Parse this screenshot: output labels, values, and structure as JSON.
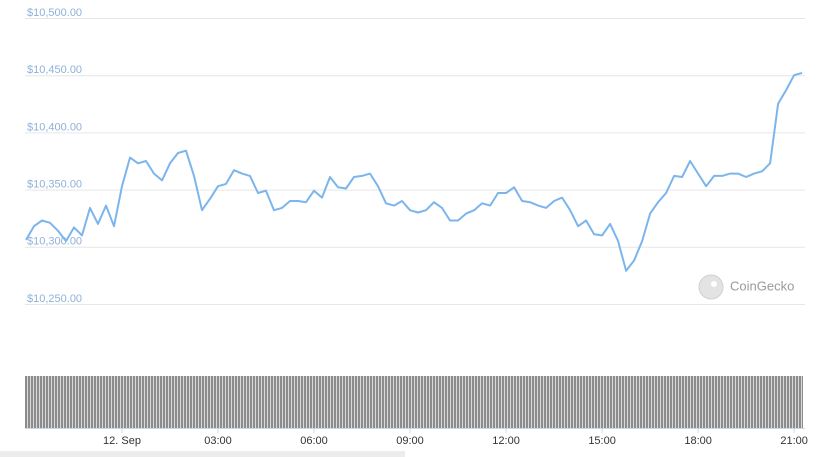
{
  "chart_data": {
    "type": "line",
    "watermark": "CoinGecko",
    "color": "#7cb5ec",
    "grid": true,
    "xlim": [
      -3.03,
      21.34
    ],
    "ylim": [
      10250,
      10500
    ],
    "xticks": [
      {
        "value": 0,
        "label": "12. Sep"
      },
      {
        "value": 3,
        "label": "03:00"
      },
      {
        "value": 6,
        "label": "06:00"
      },
      {
        "value": 9,
        "label": "09:00"
      },
      {
        "value": 12,
        "label": "12:00"
      },
      {
        "value": 15,
        "label": "15:00"
      },
      {
        "value": 18,
        "label": "18:00"
      },
      {
        "value": 21,
        "label": "21:00"
      }
    ],
    "yticks": [
      {
        "value": 10250,
        "label": "$10,250.00"
      },
      {
        "value": 10300,
        "label": "$10,300.00"
      },
      {
        "value": 10350,
        "label": "$10,350.00"
      },
      {
        "value": 10400,
        "label": "$10,400.00"
      },
      {
        "value": 10450,
        "label": "$10,450.00"
      },
      {
        "value": 10500,
        "label": "$10,500.00"
      }
    ],
    "x": [
      -3,
      -2.75,
      -2.5,
      -2.25,
      -2,
      -1.75,
      -1.5,
      -1.25,
      -1,
      -0.75,
      -0.5,
      -0.25,
      0,
      0.25,
      0.5,
      0.75,
      1,
      1.25,
      1.5,
      1.75,
      2,
      2.25,
      2.5,
      2.75,
      3,
      3.25,
      3.5,
      3.75,
      4,
      4.25,
      4.5,
      4.75,
      5,
      5.25,
      5.5,
      5.75,
      6,
      6.25,
      6.5,
      6.75,
      7,
      7.25,
      7.5,
      7.75,
      8,
      8.25,
      8.5,
      8.75,
      9,
      9.25,
      9.5,
      9.75,
      10,
      10.25,
      10.5,
      10.75,
      11,
      11.25,
      11.5,
      11.75,
      12,
      12.25,
      12.5,
      12.75,
      13,
      13.25,
      13.5,
      13.75,
      14,
      14.25,
      14.5,
      14.75,
      15,
      15.25,
      15.5,
      15.75,
      16,
      16.25,
      16.5,
      16.75,
      17,
      17.25,
      17.5,
      17.75,
      18,
      18.25,
      18.5,
      18.75,
      19,
      19.25,
      19.5,
      19.75,
      20,
      20.25,
      20.5,
      20.75,
      21,
      21.25
    ],
    "values": [
      10306,
      10318,
      10323,
      10321,
      10314,
      10305,
      10317,
      10310,
      10334,
      10320,
      10336,
      10318,
      10353,
      10378,
      10373,
      10375,
      10364,
      10358,
      10373,
      10382,
      10384,
      10362,
      10332,
      10342,
      10353,
      10355,
      10367,
      10364,
      10362,
      10347,
      10349,
      10332,
      10334,
      10340,
      10340,
      10339,
      10349,
      10343,
      10361,
      10352,
      10351,
      10361,
      10362,
      10364,
      10353,
      10338,
      10336,
      10340,
      10332,
      10330,
      10332,
      10339,
      10334,
      10323,
      10323,
      10329,
      10332,
      10338,
      10336,
      10347,
      10347,
      10352,
      10340,
      10339,
      10336,
      10334,
      10340,
      10343,
      10332,
      10318,
      10323,
      10311,
      10310,
      10320,
      10305,
      10279,
      10288,
      10305,
      10329,
      10339,
      10347,
      10362,
      10361,
      10375,
      10364,
      10353,
      10362,
      10362,
      10364,
      10364,
      10361,
      10364,
      10366,
      10373,
      10425,
      10437,
      10450,
      10452
    ]
  }
}
